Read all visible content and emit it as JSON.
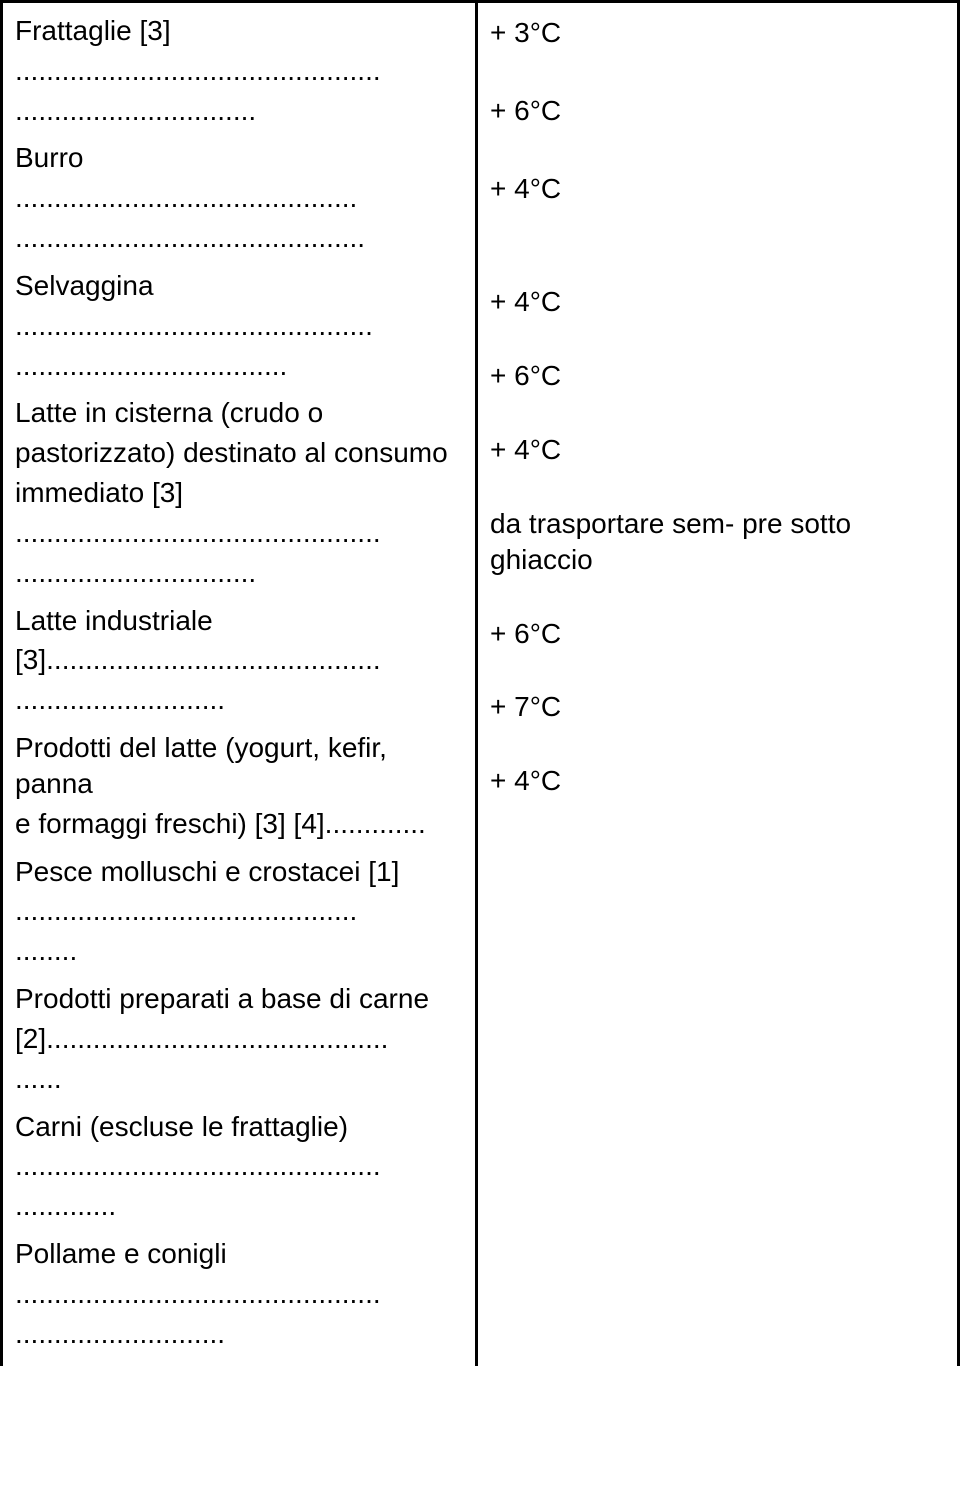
{
  "left": {
    "items": [
      {
        "type": "text",
        "value": "Frattaglie [3]"
      },
      {
        "type": "dots",
        "value": "..............................................."
      },
      {
        "type": "dots",
        "value": "..............................."
      },
      {
        "type": "spacer"
      },
      {
        "type": "text",
        "value": "Burro"
      },
      {
        "type": "dots",
        "value": "............................................"
      },
      {
        "type": "dots",
        "value": "............................................."
      },
      {
        "type": "spacer"
      },
      {
        "type": "text",
        "value": "Selvaggina"
      },
      {
        "type": "dots",
        "value": ".............................................."
      },
      {
        "type": "dots",
        "value": "..................................."
      },
      {
        "type": "spacer"
      },
      {
        "type": "text",
        "value": "Latte in cisterna (crudo o"
      },
      {
        "type": "text",
        "value": "pastorizzato) destinato al consumo"
      },
      {
        "type": "text",
        "value": "immediato [3]"
      },
      {
        "type": "dots",
        "value": "..............................................."
      },
      {
        "type": "dots",
        "value": "..............................."
      },
      {
        "type": "spacer"
      },
      {
        "type": "text",
        "value": "Latte industriale"
      },
      {
        "type": "dots",
        "value": "[3]..........................................."
      },
      {
        "type": "dots",
        "value": "..........................."
      },
      {
        "type": "spacer"
      },
      {
        "type": "text",
        "value": "Prodotti del latte (yogurt, kefir, panna"
      },
      {
        "type": "dots",
        "value": "e formaggi freschi) [3] [4]............."
      },
      {
        "type": "spacer"
      },
      {
        "type": "text",
        "value": "Pesce molluschi e crostacei [1]"
      },
      {
        "type": "dots",
        "value": "............................................"
      },
      {
        "type": "dots",
        "value": "........"
      },
      {
        "type": "spacer"
      },
      {
        "type": "text",
        "value": "Prodotti preparati a base di carne"
      },
      {
        "type": "dots",
        "value": "[2]............................................"
      },
      {
        "type": "dots",
        "value": "......"
      },
      {
        "type": "spacer"
      },
      {
        "type": "text",
        "value": "Carni (escluse le frattaglie)"
      },
      {
        "type": "dots",
        "value": "..............................................."
      },
      {
        "type": "dots",
        "value": "............."
      },
      {
        "type": "spacer"
      },
      {
        "type": "text",
        "value": "Pollame e conigli"
      },
      {
        "type": "dots",
        "value": "..............................................."
      },
      {
        "type": "dots",
        "value": "..........................."
      }
    ]
  },
  "right": {
    "lines": [
      {
        "value": "+ 3°C",
        "gap": 42
      },
      {
        "value": "+ 6°C",
        "gap": 42
      },
      {
        "value": "+ 4°C",
        "gap": 78
      },
      {
        "value": "+ 4°C",
        "gap": 38
      },
      {
        "value": "+ 6°C",
        "gap": 38
      },
      {
        "value": "+ 4°C",
        "gap": 38
      },
      {
        "value": "da trasportare sem-    pre sotto",
        "gap": 0
      },
      {
        "value": "ghiaccio",
        "gap": 38
      },
      {
        "value": " + 6°C",
        "gap": 38
      },
      {
        "value": "+ 7°C",
        "gap": 38
      },
      {
        "value": "+ 4°C",
        "gap": 0
      }
    ]
  }
}
